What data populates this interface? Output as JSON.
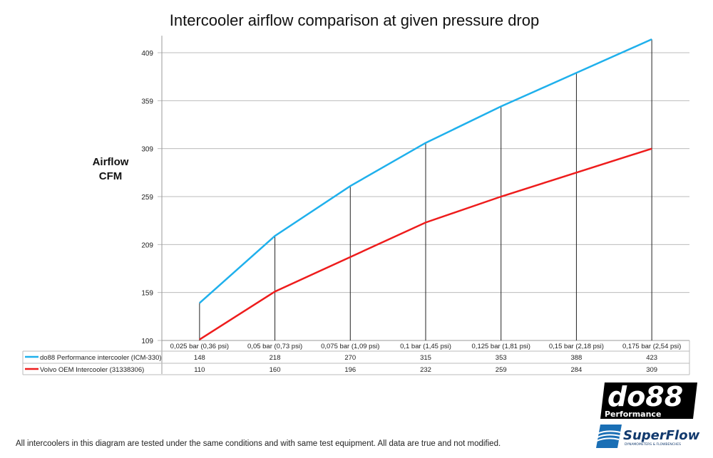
{
  "chart_data": {
    "type": "line",
    "title": "Intercooler airflow comparison at given pressure drop",
    "ylabel": [
      "Airflow",
      "CFM"
    ],
    "xlabel": "",
    "ylim": [
      109,
      423
    ],
    "yticks": [
      109,
      159,
      209,
      259,
      309,
      359,
      409
    ],
    "grid": true,
    "legend": "data-table-below",
    "categories": [
      "0,025 bar (0,36 psi)",
      "0,05 bar (0,73 psi)",
      "0,075 bar (1,09 psi)",
      "0,1 bar (1,45 psi)",
      "0,125 bar (1,81 psi)",
      "0,15 bar (2,18 psi)",
      "0,175 bar (2,54 psi)"
    ],
    "series": [
      {
        "name": "do88 Performance intercooler (ICM-330)",
        "color": "#1fb0ec",
        "values": [
          148,
          218,
          270,
          315,
          353,
          388,
          423
        ]
      },
      {
        "name": "Volvo OEM Intercooler (31338306)",
        "color": "#ee1c1c",
        "values": [
          110,
          160,
          196,
          232,
          259,
          284,
          309
        ]
      }
    ]
  },
  "footer": "All intercoolers in this diagram are tested under the same conditions and with same test equipment. All data are true and not modified.",
  "logos": {
    "do88": "do88 Performance",
    "superflow": "SuperFlow DYNAMOMETERS & FLOWBENCHES"
  }
}
